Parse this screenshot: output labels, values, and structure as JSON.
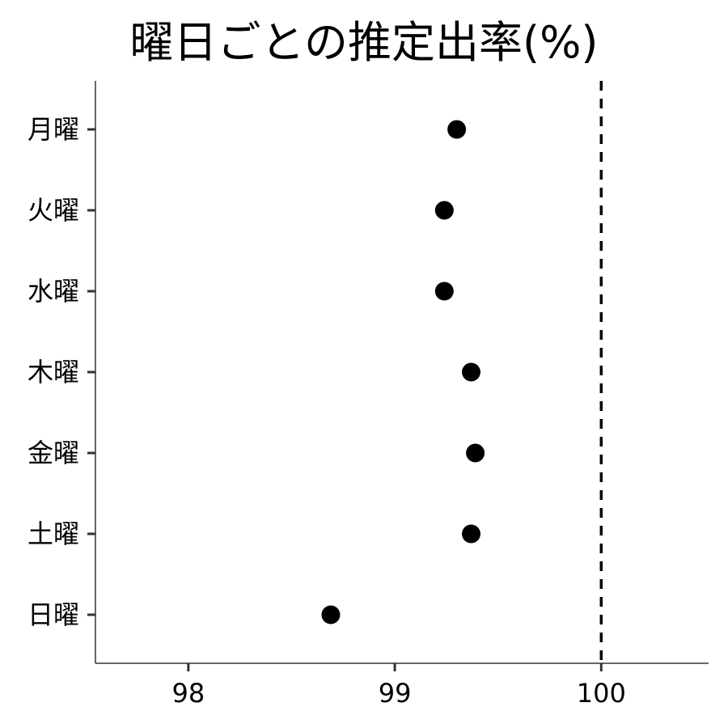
{
  "chart_data": {
    "type": "scatter",
    "title": "曜日ごとの推定出率(%)",
    "xlabel": "",
    "ylabel": "",
    "categories": [
      "月曜",
      "火曜",
      "水曜",
      "木曜",
      "金曜",
      "土曜",
      "日曜"
    ],
    "values": [
      99.3,
      99.24,
      99.24,
      99.37,
      99.39,
      99.37,
      98.69
    ],
    "xlim": [
      97.55,
      100.52
    ],
    "xticks": [
      "98",
      "99",
      "100"
    ],
    "reference_line": {
      "x": 100,
      "style": "dashed"
    },
    "grid": false,
    "marker_color": "#000000"
  }
}
